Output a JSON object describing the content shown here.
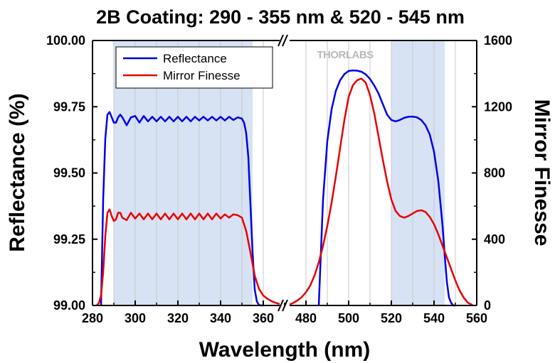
{
  "chart_data": {
    "type": "line",
    "title": "2B Coating: 290 - 355 nm & 520 - 545 nm",
    "xlabel": "Wavelength (nm)",
    "ylabel_left": "Reflectance (%)",
    "ylabel_right": "Mirror Finesse",
    "x_break": true,
    "x_segments": [
      {
        "xlim": [
          280,
          370
        ],
        "ticks": [
          280,
          300,
          320,
          340,
          360
        ]
      },
      {
        "xlim": [
          470,
          560
        ],
        "ticks": [
          480,
          500,
          520,
          540,
          560
        ]
      }
    ],
    "x_tick_labels": [
      "280",
      "300",
      "320",
      "340",
      "360",
      "480",
      "500",
      "520",
      "540",
      "560"
    ],
    "y_left": {
      "ylim": [
        99.0,
        100.0
      ],
      "ticks": [
        "99.00",
        "99.25",
        "99.50",
        "99.75",
        "100.00"
      ]
    },
    "y_right": {
      "ylim": [
        0,
        1600
      ],
      "ticks": [
        "0",
        "400",
        "800",
        "1200",
        "1600"
      ]
    },
    "shaded_bands": [
      [
        290,
        355
      ],
      [
        520,
        545
      ]
    ],
    "legend_position": "top-left",
    "watermark": "THORLABS",
    "grid": "vertical",
    "series": [
      {
        "name": "Reflectance",
        "axis": "left",
        "color": "#0000e6",
        "x": [
          284,
          285,
          286,
          287,
          288,
          289,
          290,
          291,
          292,
          293,
          294,
          296,
          298,
          300,
          302,
          304,
          306,
          308,
          310,
          312,
          314,
          316,
          318,
          320,
          322,
          324,
          326,
          328,
          330,
          332,
          334,
          336,
          338,
          340,
          342,
          344,
          346,
          348,
          350,
          351,
          352,
          353,
          354,
          355,
          356,
          357,
          358,
          359,
          360,
          486,
          487,
          488,
          490,
          492,
          494,
          496,
          498,
          500,
          502,
          504,
          506,
          508,
          510,
          512,
          514,
          516,
          518,
          520,
          522,
          524,
          526,
          528,
          530,
          532,
          534,
          536,
          538,
          540,
          542,
          544,
          545,
          546,
          547,
          548,
          549,
          550
        ],
        "y": [
          99.0,
          99.4,
          99.63,
          99.72,
          99.73,
          99.71,
          99.69,
          99.69,
          99.71,
          99.72,
          99.71,
          99.68,
          99.71,
          99.715,
          99.69,
          99.715,
          99.695,
          99.712,
          99.695,
          99.712,
          99.695,
          99.712,
          99.695,
          99.712,
          99.695,
          99.712,
          99.695,
          99.712,
          99.698,
          99.712,
          99.698,
          99.712,
          99.698,
          99.712,
          99.698,
          99.712,
          99.7,
          99.71,
          99.705,
          99.69,
          99.65,
          99.56,
          99.38,
          99.2,
          99.06,
          99.015,
          99.002,
          99.0,
          99.0,
          99.0,
          99.2,
          99.4,
          99.62,
          99.74,
          99.81,
          99.85,
          99.873,
          99.885,
          99.887,
          99.886,
          99.882,
          99.872,
          99.855,
          99.83,
          99.8,
          99.76,
          99.72,
          99.7,
          99.695,
          99.7,
          99.708,
          99.712,
          99.713,
          99.71,
          99.7,
          99.68,
          99.645,
          99.58,
          99.47,
          99.3,
          99.19,
          99.09,
          99.03,
          99.01,
          99.0,
          99.0
        ]
      },
      {
        "name": "Mirror Finesse",
        "axis": "right",
        "color": "#e60000",
        "x": [
          282,
          283,
          284,
          285,
          286,
          287,
          288,
          289,
          290,
          291,
          292,
          293,
          294,
          296,
          298,
          300,
          302,
          304,
          306,
          308,
          310,
          312,
          314,
          316,
          318,
          320,
          322,
          324,
          326,
          328,
          330,
          332,
          334,
          336,
          338,
          340,
          342,
          344,
          346,
          348,
          350,
          352,
          354,
          356,
          358,
          360,
          362,
          364,
          366,
          368,
          370,
          470,
          472,
          474,
          476,
          478,
          480,
          482,
          484,
          486,
          488,
          490,
          492,
          494,
          496,
          498,
          500,
          502,
          504,
          506,
          508,
          510,
          512,
          514,
          516,
          518,
          520,
          522,
          524,
          526,
          528,
          530,
          532,
          534,
          536,
          538,
          540,
          542,
          544,
          546,
          548,
          550,
          552,
          554,
          556,
          558
        ],
        "y": [
          0,
          15,
          60,
          200,
          420,
          560,
          580,
          540,
          510,
          520,
          560,
          560,
          530,
          515,
          560,
          525,
          555,
          520,
          555,
          520,
          555,
          520,
          555,
          520,
          555,
          520,
          555,
          520,
          555,
          520,
          555,
          520,
          555,
          520,
          555,
          525,
          550,
          530,
          550,
          545,
          530,
          450,
          320,
          180,
          100,
          60,
          40,
          25,
          15,
          8,
          3,
          0,
          5,
          15,
          30,
          50,
          80,
          120,
          180,
          260,
          360,
          480,
          620,
          780,
          950,
          1120,
          1260,
          1330,
          1360,
          1370,
          1345,
          1270,
          1160,
          1020,
          880,
          750,
          640,
          570,
          540,
          530,
          540,
          555,
          570,
          575,
          565,
          535,
          490,
          430,
          360,
          290,
          220,
          150,
          90,
          45,
          15,
          3
        ]
      }
    ]
  }
}
